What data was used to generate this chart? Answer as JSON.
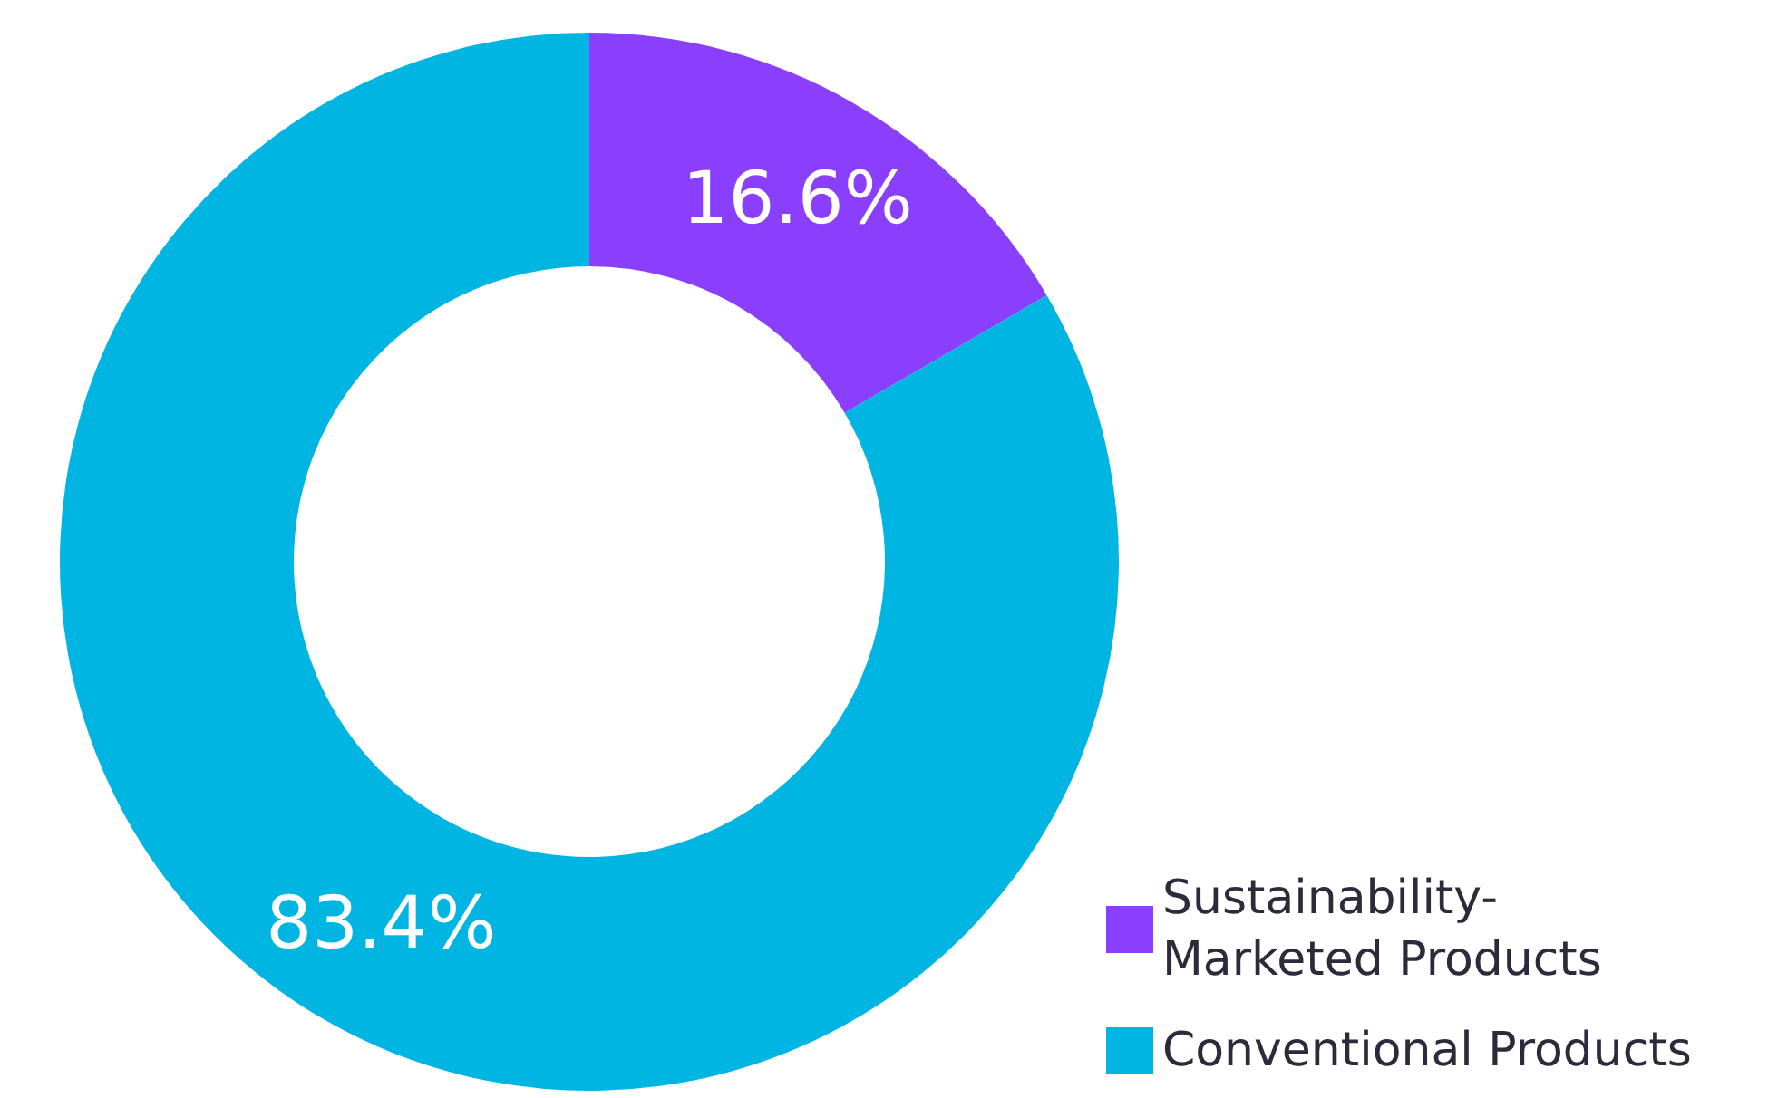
{
  "chart_data": {
    "type": "donut",
    "categories": [
      "Sustainability-Marketed Products",
      "Conventional Products"
    ],
    "values": [
      16.6,
      83.4
    ],
    "colors": [
      "#8a3ffc",
      "#00b5e2"
    ],
    "value_labels": [
      "16.6%",
      "83.4%"
    ],
    "legend": "bottom right"
  }
}
